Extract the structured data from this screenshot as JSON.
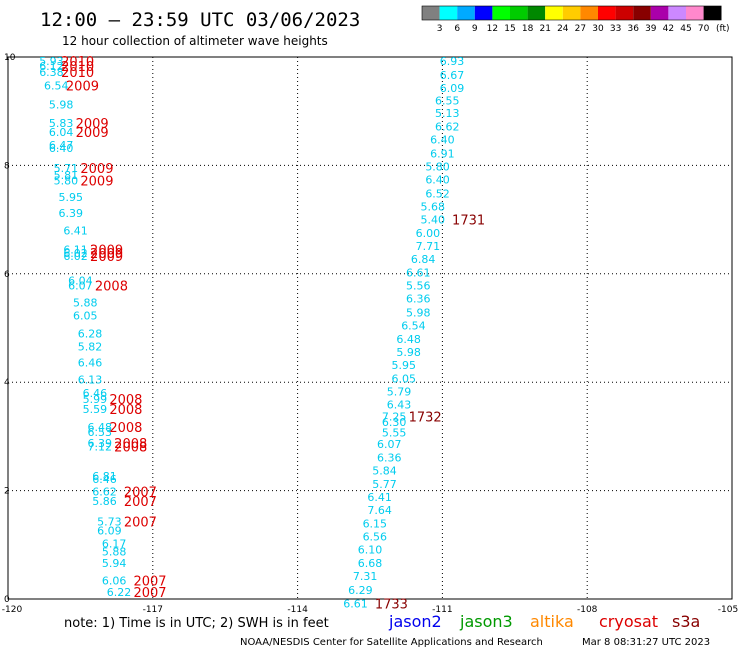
{
  "header": {
    "title": "12:00 – 23:59 UTC 03/06/2023",
    "subtitle": "12 hour collection of altimeter wave heights"
  },
  "legend": {
    "colors": [
      "#808080",
      "#00ffff",
      "#00aaff",
      "#0000ff",
      "#00ff00",
      "#00cc00",
      "#008800",
      "#ffff00",
      "#ffcc00",
      "#ff8800",
      "#ff0000",
      "#cc0000",
      "#880000",
      "#aa00aa",
      "#cc88ff",
      "#ff88cc",
      "#000000"
    ],
    "ticks": [
      "3",
      "6",
      "9",
      "12",
      "15",
      "18",
      "21",
      "24",
      "27",
      "30",
      "33",
      "36",
      "39",
      "42",
      "45",
      "70"
    ],
    "unit": "(ft)"
  },
  "notes": {
    "text": "note:  1) Time is in UTC; 2) SWH is in feet"
  },
  "satellites": [
    {
      "name": "jason2",
      "color": "#0000ee"
    },
    {
      "name": "jason3",
      "color": "#009900"
    },
    {
      "name": "altika",
      "color": "#ff8800"
    },
    {
      "name": "cryosat",
      "color": "#dd0000"
    },
    {
      "name": "s3a",
      "color": "#880000"
    }
  ],
  "footer": {
    "agency": "NOAA/NESDIS Center for Satellite Applications and Research",
    "timestamp": "Mar  8 08:31:27 UTC 2023"
  },
  "chart_data": {
    "type": "scatter",
    "title": "12:00 – 23:59 UTC 03/06/2023",
    "subtitle": "12 hour collection of altimeter wave heights",
    "xlim": [
      -120,
      -105
    ],
    "ylim": [
      0,
      10
    ],
    "x_ticks": [
      "-120",
      "-117",
      "-114",
      "-111",
      "-108",
      "-105"
    ],
    "y_ticks": [
      "0",
      "2",
      "4",
      "6",
      "8",
      "10"
    ],
    "grid": true,
    "series": [
      {
        "name": "cryosat",
        "color": "#00ccee",
        "points": [
          {
            "x": -119.1,
            "y": 9.93,
            "swh": "5.93"
          },
          {
            "x": -119.1,
            "y": 9.83,
            "swh": "6.12"
          },
          {
            "x": -119.1,
            "y": 9.72,
            "swh": "6.38"
          },
          {
            "x": -119.0,
            "y": 9.47,
            "swh": "6.54"
          },
          {
            "x": -118.9,
            "y": 9.12,
            "swh": "5.98"
          },
          {
            "x": -118.9,
            "y": 8.78,
            "swh": "5.83"
          },
          {
            "x": -118.9,
            "y": 8.62,
            "swh": "6.04"
          },
          {
            "x": -118.9,
            "y": 8.38,
            "swh": "6.47"
          },
          {
            "x": -118.9,
            "y": 8.32,
            "swh": "6.40"
          },
          {
            "x": -118.8,
            "y": 7.95,
            "swh": "5.71"
          },
          {
            "x": -118.8,
            "y": 7.82,
            "swh": "5.81"
          },
          {
            "x": -118.8,
            "y": 7.72,
            "swh": "5.80"
          },
          {
            "x": -118.7,
            "y": 7.42,
            "swh": "5.95"
          },
          {
            "x": -118.7,
            "y": 7.12,
            "swh": "6.39"
          },
          {
            "x": -118.6,
            "y": 6.8,
            "swh": "6.41"
          },
          {
            "x": -118.6,
            "y": 6.45,
            "swh": "6.11"
          },
          {
            "x": -118.6,
            "y": 6.38,
            "swh": "6.02"
          },
          {
            "x": -118.6,
            "y": 6.33,
            "swh": "6.02"
          },
          {
            "x": -118.5,
            "y": 5.88,
            "swh": "6.04"
          },
          {
            "x": -118.5,
            "y": 5.78,
            "swh": "6.07"
          },
          {
            "x": -118.4,
            "y": 5.47,
            "swh": "5.88"
          },
          {
            "x": -118.4,
            "y": 5.23,
            "swh": "6.05"
          },
          {
            "x": -118.3,
            "y": 4.9,
            "swh": "6.28"
          },
          {
            "x": -118.3,
            "y": 4.66,
            "swh": "5.82"
          },
          {
            "x": -118.3,
            "y": 4.36,
            "swh": "6.46"
          },
          {
            "x": -118.3,
            "y": 4.05,
            "swh": "6.13"
          },
          {
            "x": -118.2,
            "y": 3.8,
            "swh": "6.46"
          },
          {
            "x": -118.2,
            "y": 3.69,
            "swh": "5.99"
          },
          {
            "x": -118.2,
            "y": 3.51,
            "swh": "5.59"
          },
          {
            "x": -118.1,
            "y": 3.17,
            "swh": "6.48"
          },
          {
            "x": -118.1,
            "y": 3.08,
            "swh": "6.53"
          },
          {
            "x": -118.1,
            "y": 2.88,
            "swh": "6.39"
          },
          {
            "x": -118.1,
            "y": 2.81,
            "swh": "7.12"
          },
          {
            "x": -118.0,
            "y": 2.27,
            "swh": "6.81"
          },
          {
            "x": -118.0,
            "y": 2.21,
            "swh": "6.46"
          },
          {
            "x": -118.0,
            "y": 1.98,
            "swh": "6.62"
          },
          {
            "x": -118.0,
            "y": 1.81,
            "swh": "5.86"
          },
          {
            "x": -117.9,
            "y": 1.43,
            "swh": "5.73"
          },
          {
            "x": -117.9,
            "y": 1.26,
            "swh": "6.09"
          },
          {
            "x": -117.8,
            "y": 1.02,
            "swh": "6.17"
          },
          {
            "x": -117.8,
            "y": 0.88,
            "swh": "5.88"
          },
          {
            "x": -117.8,
            "y": 0.66,
            "swh": "5.94"
          },
          {
            "x": -117.8,
            "y": 0.34,
            "swh": "6.06"
          },
          {
            "x": -117.7,
            "y": 0.13,
            "swh": "6.22"
          }
        ]
      },
      {
        "name": "s3a",
        "color": "#00ccee",
        "points": [
          {
            "x": -110.8,
            "y": 9.93,
            "swh": "6.93"
          },
          {
            "x": -110.8,
            "y": 9.67,
            "swh": "6.67"
          },
          {
            "x": -110.8,
            "y": 9.43,
            "swh": "6.09"
          },
          {
            "x": -110.9,
            "y": 9.2,
            "swh": "6.55"
          },
          {
            "x": -110.9,
            "y": 8.97,
            "swh": "5.13"
          },
          {
            "x": -110.9,
            "y": 8.72,
            "swh": "6.62"
          },
          {
            "x": -111.0,
            "y": 8.48,
            "swh": "6.40"
          },
          {
            "x": -111.0,
            "y": 8.22,
            "swh": "6.91"
          },
          {
            "x": -111.1,
            "y": 7.98,
            "swh": "5.80"
          },
          {
            "x": -111.1,
            "y": 7.74,
            "swh": "6.40"
          },
          {
            "x": -111.1,
            "y": 7.48,
            "swh": "6.52"
          },
          {
            "x": -111.2,
            "y": 7.24,
            "swh": "5.68"
          },
          {
            "x": -111.2,
            "y": 7.0,
            "swh": "5.40"
          },
          {
            "x": -111.3,
            "y": 6.75,
            "swh": "6.00"
          },
          {
            "x": -111.3,
            "y": 6.51,
            "swh": "7.71"
          },
          {
            "x": -111.4,
            "y": 6.27,
            "swh": "6.84"
          },
          {
            "x": -111.5,
            "y": 6.02,
            "swh": "6.61"
          },
          {
            "x": -111.5,
            "y": 5.78,
            "swh": "5.56"
          },
          {
            "x": -111.5,
            "y": 5.54,
            "swh": "6.36"
          },
          {
            "x": -111.5,
            "y": 5.29,
            "swh": "5.98"
          },
          {
            "x": -111.6,
            "y": 5.05,
            "swh": "6.54"
          },
          {
            "x": -111.7,
            "y": 4.8,
            "swh": "6.48"
          },
          {
            "x": -111.7,
            "y": 4.56,
            "swh": "5.98"
          },
          {
            "x": -111.8,
            "y": 4.32,
            "swh": "5.95"
          },
          {
            "x": -111.8,
            "y": 4.07,
            "swh": "6.05"
          },
          {
            "x": -111.9,
            "y": 3.83,
            "swh": "5.79"
          },
          {
            "x": -111.9,
            "y": 3.59,
            "swh": "6.43"
          },
          {
            "x": -112.0,
            "y": 3.37,
            "swh": "7.25"
          },
          {
            "x": -112.0,
            "y": 3.27,
            "swh": "6.30"
          },
          {
            "x": -112.0,
            "y": 3.07,
            "swh": "5.55"
          },
          {
            "x": -112.1,
            "y": 2.86,
            "swh": "6.07"
          },
          {
            "x": -112.1,
            "y": 2.61,
            "swh": "6.36"
          },
          {
            "x": -112.2,
            "y": 2.37,
            "swh": "5.84"
          },
          {
            "x": -112.2,
            "y": 2.12,
            "swh": "5.77"
          },
          {
            "x": -112.3,
            "y": 1.88,
            "swh": "6.41"
          },
          {
            "x": -112.3,
            "y": 1.64,
            "swh": "7.64"
          },
          {
            "x": -112.4,
            "y": 1.39,
            "swh": "6.15"
          },
          {
            "x": -112.4,
            "y": 1.15,
            "swh": "6.56"
          },
          {
            "x": -112.5,
            "y": 0.91,
            "swh": "6.10"
          },
          {
            "x": -112.5,
            "y": 0.66,
            "swh": "6.68"
          },
          {
            "x": -112.6,
            "y": 0.42,
            "swh": "7.31"
          },
          {
            "x": -112.7,
            "y": 0.17,
            "swh": "6.29"
          },
          {
            "x": -112.8,
            "y": -0.08,
            "swh": "6.61"
          }
        ]
      }
    ],
    "time_labels": [
      {
        "x": -118.9,
        "y": 9.93,
        "label": "2010",
        "color": "#dd0000"
      },
      {
        "x": -118.9,
        "y": 9.83,
        "label": "2010",
        "color": "#dd0000"
      },
      {
        "x": -118.9,
        "y": 9.72,
        "label": "2010",
        "color": "#dd0000"
      },
      {
        "x": -118.8,
        "y": 9.47,
        "label": "2009",
        "color": "#dd0000"
      },
      {
        "x": -118.6,
        "y": 8.78,
        "label": "2009",
        "color": "#dd0000"
      },
      {
        "x": -118.6,
        "y": 8.62,
        "label": "2009",
        "color": "#dd0000"
      },
      {
        "x": -118.5,
        "y": 7.95,
        "label": "2009",
        "color": "#dd0000"
      },
      {
        "x": -118.5,
        "y": 7.72,
        "label": "2009",
        "color": "#dd0000"
      },
      {
        "x": -118.3,
        "y": 6.45,
        "label": "2009",
        "color": "#dd0000"
      },
      {
        "x": -118.3,
        "y": 6.38,
        "label": "2009",
        "color": "#dd0000"
      },
      {
        "x": -118.3,
        "y": 6.33,
        "label": "2009",
        "color": "#dd0000"
      },
      {
        "x": -118.2,
        "y": 5.78,
        "label": "2008",
        "color": "#dd0000"
      },
      {
        "x": -117.9,
        "y": 3.69,
        "label": "2008",
        "color": "#dd0000"
      },
      {
        "x": -117.9,
        "y": 3.51,
        "label": "2008",
        "color": "#dd0000"
      },
      {
        "x": -117.9,
        "y": 3.17,
        "label": "2008",
        "color": "#dd0000"
      },
      {
        "x": -117.8,
        "y": 2.88,
        "label": "2008",
        "color": "#dd0000"
      },
      {
        "x": -117.8,
        "y": 2.81,
        "label": "2008",
        "color": "#dd0000"
      },
      {
        "x": -117.6,
        "y": 1.98,
        "label": "2007",
        "color": "#dd0000"
      },
      {
        "x": -117.6,
        "y": 1.81,
        "label": "2007",
        "color": "#dd0000"
      },
      {
        "x": -117.6,
        "y": 1.43,
        "label": "2007",
        "color": "#dd0000"
      },
      {
        "x": -117.4,
        "y": 0.34,
        "label": "2007",
        "color": "#dd0000"
      },
      {
        "x": -117.4,
        "y": 0.13,
        "label": "2007",
        "color": "#dd0000"
      },
      {
        "x": -110.8,
        "y": 7.0,
        "label": "1731",
        "color": "#880000"
      },
      {
        "x": -111.7,
        "y": 3.37,
        "label": "1732",
        "color": "#880000"
      },
      {
        "x": -112.4,
        "y": -0.08,
        "label": "1733",
        "color": "#880000"
      }
    ]
  }
}
